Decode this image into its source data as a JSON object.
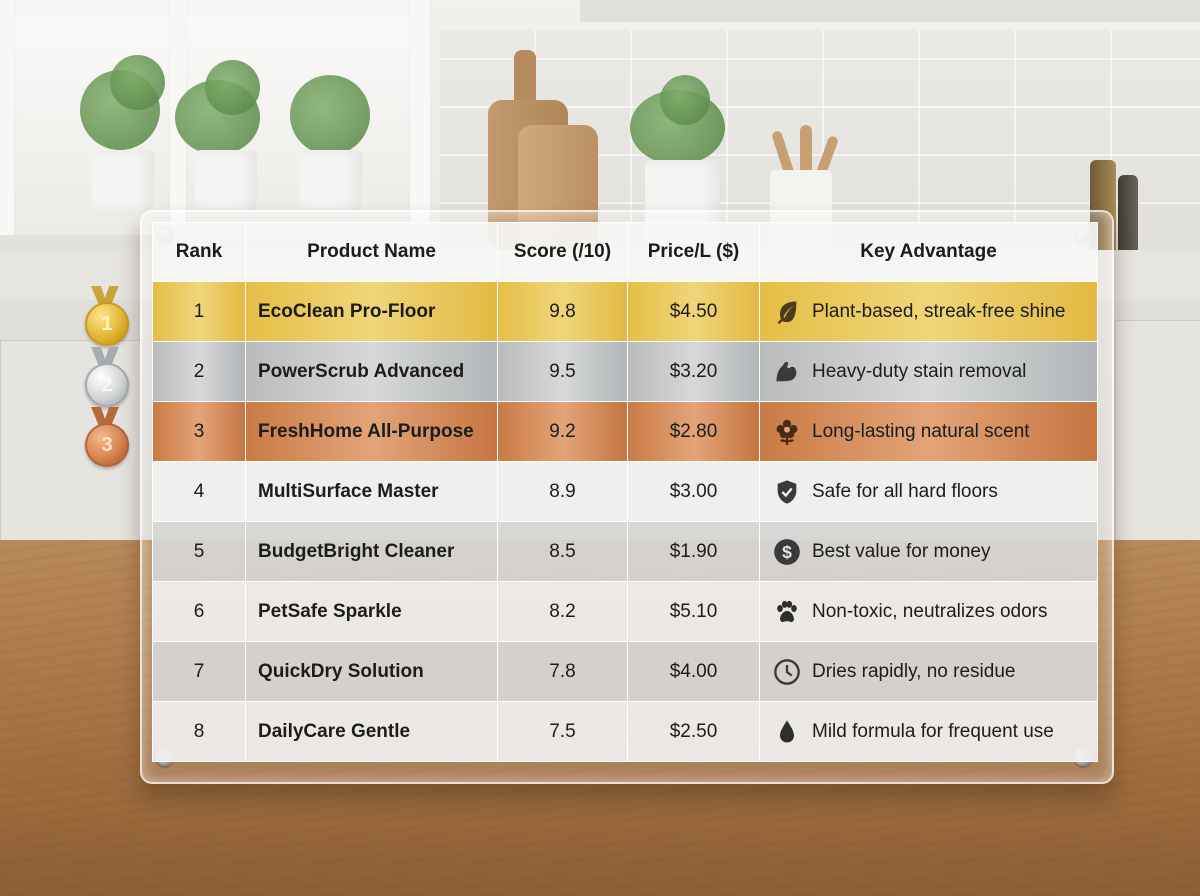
{
  "table": {
    "headers": {
      "rank": "Rank",
      "product_name": "Product Name",
      "score": "Score (/10)",
      "price": "Price/L ($)",
      "advantage": "Key Advantage"
    },
    "rows": [
      {
        "rank": "1",
        "name": "EcoClean Pro-Floor",
        "score": "9.8",
        "price": "$4.50",
        "advantage": "Plant-based, streak-free shine",
        "icon": "leaf-icon"
      },
      {
        "rank": "2",
        "name": "PowerScrub Advanced",
        "score": "9.5",
        "price": "$3.20",
        "advantage": "Heavy-duty stain removal",
        "icon": "flexed-arm-icon"
      },
      {
        "rank": "3",
        "name": "FreshHome All-Purpose",
        "score": "9.2",
        "price": "$2.80",
        "advantage": "Long-lasting natural scent",
        "icon": "flower-icon"
      },
      {
        "rank": "4",
        "name": "MultiSurface Master",
        "score": "8.9",
        "price": "$3.00",
        "advantage": "Safe for all hard floors",
        "icon": "shield-check-icon"
      },
      {
        "rank": "5",
        "name": "BudgetBright Cleaner",
        "score": "8.5",
        "price": "$1.90",
        "advantage": "Best value for money",
        "icon": "dollar-coin-icon"
      },
      {
        "rank": "6",
        "name": "PetSafe Sparkle",
        "score": "8.2",
        "price": "$5.10",
        "advantage": "Non-toxic, neutralizes odors",
        "icon": "paw-icon"
      },
      {
        "rank": "7",
        "name": "QuickDry Solution",
        "score": "7.8",
        "price": "$4.00",
        "advantage": "Dries rapidly, no residue",
        "icon": "clock-icon"
      },
      {
        "rank": "8",
        "name": "DailyCare Gentle",
        "score": "7.5",
        "price": "$2.50",
        "advantage": "Mild formula for frequent use",
        "icon": "water-drop-icon"
      }
    ]
  },
  "medals": [
    {
      "label": "1",
      "type": "gold"
    },
    {
      "label": "2",
      "type": "silver"
    },
    {
      "label": "3",
      "type": "bronze"
    }
  ],
  "colors": {
    "gold_row": "#e6be46",
    "silver_row": "#c9cbcc",
    "bronze_row": "#d58c58",
    "light_row": "#f0f0ef",
    "dark_row": "#d6d6d5",
    "wood": "#a87646"
  }
}
